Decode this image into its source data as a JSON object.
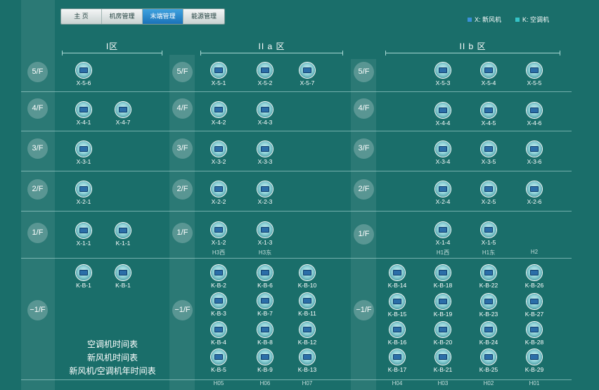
{
  "nav": {
    "tabs": [
      "主 页",
      "机房管理",
      "末端管理",
      "能源管理"
    ],
    "active": 2
  },
  "legend": [
    {
      "text": "X:  新风机",
      "color": "#3a8fd8"
    },
    {
      "text": "K:  空调机",
      "color": "#35c3c7"
    }
  ],
  "zones": {
    "z1": "I区",
    "z2a": "II a 区",
    "z2b": "II b 区"
  },
  "floors": [
    "5/F",
    "4/F",
    "3/F",
    "2/F",
    "1/F",
    "−1/F"
  ],
  "units": {
    "f5": [
      "X-5-6",
      "X-5-1",
      "X-5-2",
      "X-5-7",
      "X-5-3",
      "X-5-4",
      "X-5-5"
    ],
    "f4": [
      "X-4-1",
      "X-4-7",
      "X-4-2",
      "X-4-3",
      "X-4-4",
      "X-4-5",
      "X-4-6"
    ],
    "f3": [
      "X-3-1",
      "X-3-2",
      "X-3-3",
      "X-3-4",
      "X-3-5",
      "X-3-6"
    ],
    "f2": [
      "X-2-1",
      "X-2-2",
      "X-2-3",
      "X-2-4",
      "X-2-5",
      "X-2-6"
    ],
    "f1": [
      "X-1-1",
      "K-1-1",
      "X-1-2",
      "X-1-3",
      "X-1-4",
      "X-1-5"
    ],
    "b1": [
      "K-B-1",
      "K-B-1",
      "K-B-2",
      "K-B-6",
      "K-B-10",
      "K-B-3",
      "K-B-7",
      "K-B-11",
      "K-B-4",
      "K-B-8",
      "K-B-12",
      "K-B-5",
      "K-B-9",
      "K-B-13",
      "K-B-14",
      "K-B-18",
      "K-B-22",
      "K-B-26",
      "K-B-15",
      "K-B-19",
      "K-B-23",
      "K-B-27",
      "K-B-16",
      "K-B-20",
      "K-B-24",
      "K-B-28",
      "K-B-17",
      "K-B-21",
      "K-B-25",
      "K-B-29"
    ]
  },
  "f1_subs": [
    "H3西",
    "H3东",
    "H1西",
    "H1东",
    "H2"
  ],
  "b1_subs": [
    "H05",
    "H06",
    "H07",
    "H04",
    "H03",
    "H02",
    "H01"
  ],
  "links": [
    "空调机时间表",
    "新风机时间表",
    "新风机/空调机年时间表"
  ]
}
